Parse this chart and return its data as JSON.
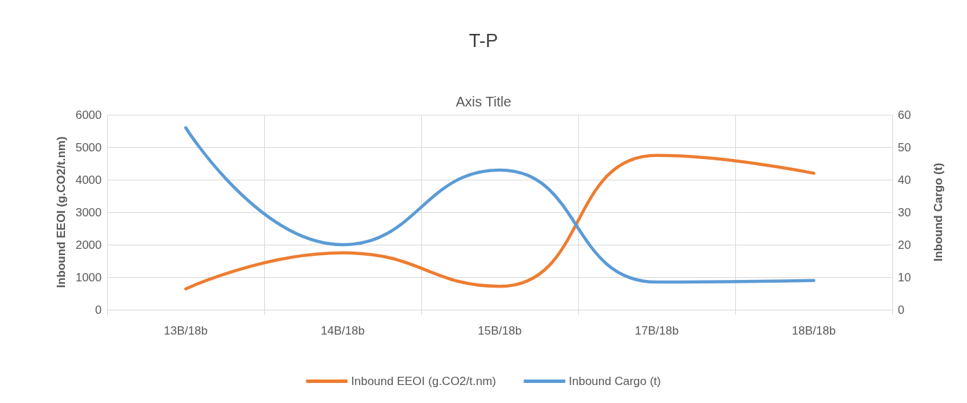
{
  "chart_data": {
    "type": "line",
    "title": "T-P",
    "xlabel": "Axis Title",
    "ylabel": "Inbound EEOI (g.CO2/t.nm)",
    "y2label": "Inbound Cargo (t)",
    "categories": [
      "13B/18b",
      "14B/18b",
      "15B/18b",
      "17B/18b",
      "18B/18b"
    ],
    "series": [
      {
        "name": "Inbound EEOI (g.CO2/t.nm)",
        "color": "#ed7d31",
        "values": [
          640,
          1750,
          720,
          4750,
          4200
        ]
      },
      {
        "name": "Inbound Cargo (t)",
        "color": "#5b9bd5",
        "axis": "y2",
        "values": [
          56,
          20,
          43,
          8.5,
          9
        ]
      }
    ],
    "ylim": [
      0,
      6000
    ],
    "yticks": [
      0,
      1000,
      2000,
      3000,
      4000,
      5000,
      6000
    ],
    "y2lim": [
      0,
      60
    ],
    "y2ticks": [
      0,
      10,
      20,
      30,
      40,
      50,
      60
    ],
    "grid": true,
    "legend": "bottom",
    "marker": "none",
    "line_style": "solid"
  }
}
